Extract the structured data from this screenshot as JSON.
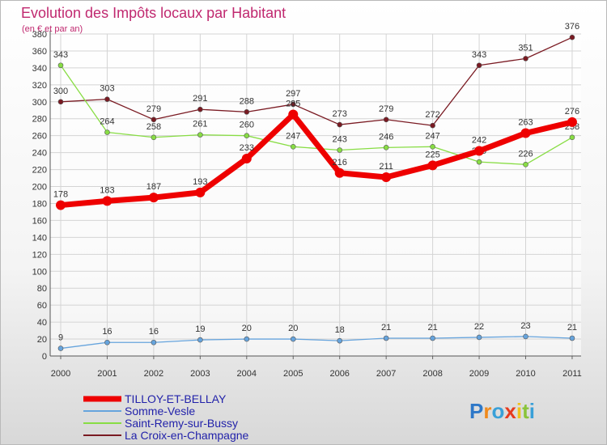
{
  "chart_data": {
    "type": "line",
    "title": "Evolution des Impôts locaux par Habitant",
    "subtitle": "(en € et par an)",
    "xlabel": "",
    "ylabel": "",
    "x": [
      "2000",
      "2001",
      "2002",
      "2003",
      "2004",
      "2005",
      "2006",
      "2007",
      "2008",
      "2009",
      "2010",
      "2011"
    ],
    "ylim": [
      0,
      380
    ],
    "yticks": [
      0,
      20,
      40,
      60,
      80,
      100,
      120,
      140,
      160,
      180,
      200,
      220,
      240,
      260,
      280,
      300,
      320,
      340,
      360,
      380
    ],
    "grid": true,
    "legend_position": "bottom-left",
    "series": [
      {
        "name": "La Croix-en-Champagne",
        "color": "#7a1a22",
        "values": [
          300,
          303,
          279,
          291,
          288,
          297,
          273,
          279,
          272,
          343,
          351,
          376
        ]
      },
      {
        "name": "Saint-Remy-sur-Bussy",
        "color": "#88dd44",
        "values": [
          343,
          264,
          258,
          261,
          260,
          247,
          243,
          246,
          247,
          229,
          226,
          258
        ]
      },
      {
        "name": "Somme-Vesle",
        "color": "#66a4dd",
        "values": [
          9,
          16,
          16,
          19,
          20,
          20,
          18,
          21,
          21,
          22,
          23,
          21
        ]
      },
      {
        "name": "TILLOY-ET-BELLAY",
        "color": "#ee0000",
        "values": [
          178,
          183,
          187,
          193,
          233,
          285,
          216,
          211,
          225,
          242,
          263,
          276
        ]
      }
    ],
    "legend_order": [
      "TILLOY-ET-BELLAY",
      "Somme-Vesle",
      "Saint-Remy-sur-Bussy",
      "La Croix-en-Champagne"
    ]
  },
  "logo": {
    "text": "Proxiti"
  }
}
